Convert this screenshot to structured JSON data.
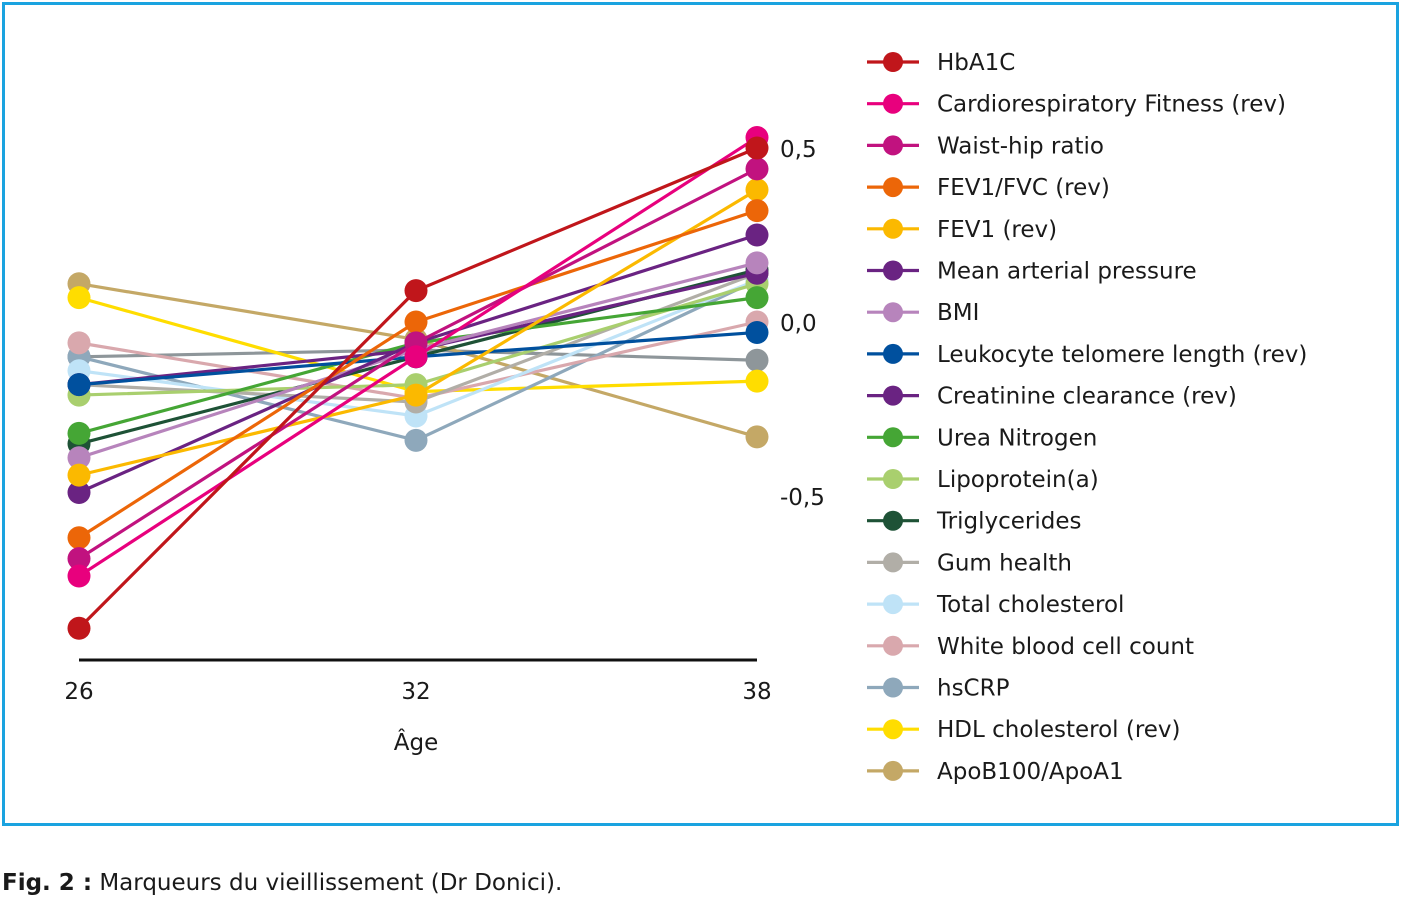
{
  "chart_data": {
    "type": "line",
    "xlabel": "Âge",
    "ylabel": "",
    "x": [
      26,
      32,
      38
    ],
    "x_tick_labels": [
      "26",
      "32",
      "38"
    ],
    "y_ticks": [
      0.5,
      0.0,
      -0.5
    ],
    "y_tick_labels": [
      "0,5",
      "0,0",
      "-0,5"
    ],
    "ylim": [
      -0.95,
      0.55
    ],
    "grid": false,
    "legend_position": "right",
    "series": [
      {
        "name": "HbA1C",
        "color": "#c0161b",
        "values": [
          -0.88,
          0.09,
          0.5
        ]
      },
      {
        "name": "Cardiorespiratory Fitness (rev)",
        "color": "#e8007d",
        "values": [
          -0.73,
          -0.1,
          0.53
        ]
      },
      {
        "name": "Waist-hip ratio",
        "color": "#c1127f",
        "values": [
          -0.68,
          -0.06,
          0.44
        ]
      },
      {
        "name": "FEV1/FVC (rev)",
        "color": "#ec6608",
        "values": [
          -0.62,
          0.0,
          0.32
        ]
      },
      {
        "name": "FEV1 (rev)",
        "color": "#fbb900",
        "values": [
          -0.44,
          -0.21,
          0.38
        ]
      },
      {
        "name": "Mean arterial pressure",
        "color": "#6a2382",
        "values": [
          -0.49,
          -0.06,
          0.25
        ]
      },
      {
        "name": "BMI",
        "color": "#b784bc",
        "values": [
          -0.39,
          -0.08,
          0.17
        ]
      },
      {
        "name": "Leukocyte telomere length (rev)",
        "color": "#00509e",
        "values": [
          -0.18,
          -0.1,
          -0.03
        ]
      },
      {
        "name": "Creatinine clearance (rev)",
        "color": "#6a2382",
        "values": [
          -0.18,
          -0.08,
          0.14
        ]
      },
      {
        "name": "Urea Nitrogen",
        "color": "#45a635",
        "values": [
          -0.32,
          -0.06,
          0.07
        ]
      },
      {
        "name": "Lipoprotein(a)",
        "color": "#a9cf6e",
        "values": [
          -0.21,
          -0.18,
          0.11
        ]
      },
      {
        "name": "Triglycerides",
        "color": "#1e5236",
        "values": [
          -0.35,
          -0.1,
          0.15
        ]
      },
      {
        "name": "Gum health",
        "color": "#b1aea7",
        "values": [
          -0.18,
          -0.23,
          0.14
        ]
      },
      {
        "name": "Total cholesterol",
        "color": "#bfe3f7",
        "values": [
          -0.14,
          -0.27,
          0.12
        ]
      },
      {
        "name": "White blood cell count",
        "color": "#d9a8ad",
        "values": [
          -0.06,
          -0.22,
          0.0
        ]
      },
      {
        "name": "hsCRP",
        "color": "#8ea8bb",
        "values": [
          -0.1,
          -0.34,
          0.12
        ]
      },
      {
        "name": "HDL cholesterol (rev)",
        "color": "#ffdd00",
        "values": [
          0.07,
          -0.2,
          -0.17
        ]
      },
      {
        "name": "ApoB100/ApoA1",
        "color": "#c4a866",
        "values": [
          0.11,
          -0.05,
          -0.33
        ]
      },
      {
        "name": "",
        "color": "#8e969a",
        "values": [
          -0.1,
          -0.08,
          -0.11
        ]
      }
    ]
  },
  "caption": {
    "label": "Fig. 2 :",
    "text": " Marqueurs du vieillissement (Dr Donici)."
  }
}
